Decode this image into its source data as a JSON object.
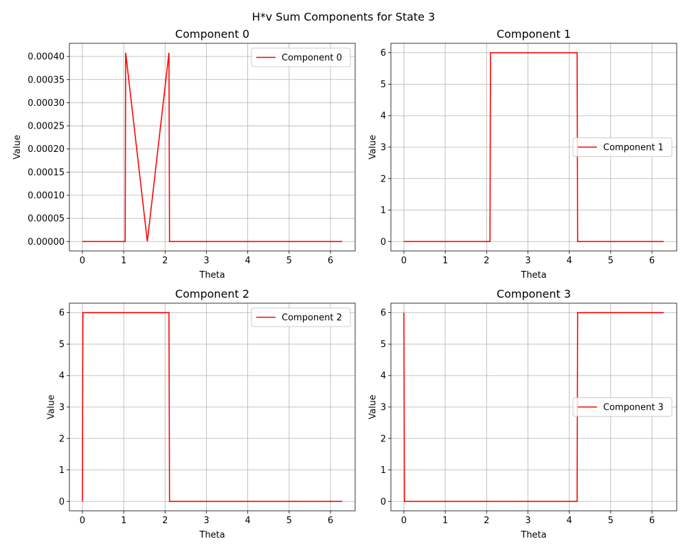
{
  "figure": {
    "suptitle": "H*v Sum Components for State 3",
    "line_color": "#ff0000",
    "grid_color": "#b0b0b0"
  },
  "chart_data": [
    {
      "type": "line",
      "title": "Component 0",
      "xlabel": "Theta",
      "ylabel": "Value",
      "xlim": [
        -0.3142,
        6.5973
      ],
      "ylim": [
        -2.04e-05,
        0.0004284
      ],
      "xticks": [
        0,
        1,
        2,
        3,
        4,
        5,
        6
      ],
      "xtick_labels": [
        "0",
        "1",
        "2",
        "3",
        "4",
        "5",
        "6"
      ],
      "yticks": [
        0,
        5e-05,
        0.0001,
        0.00015,
        0.0002,
        0.00025,
        0.0003,
        0.00035,
        0.0004
      ],
      "ytick_labels": [
        "0.00000",
        "0.00005",
        "0.00010",
        "0.00015",
        "0.00020",
        "0.00025",
        "0.00030",
        "0.00035",
        "0.00040"
      ],
      "grid": true,
      "legend_position": "upper right",
      "series": [
        {
          "name": "Component 0",
          "color": "#ff0000",
          "x": [
            0,
            1.035,
            1.047,
            1.5708,
            2.094,
            2.107,
            6.2832
          ],
          "y": [
            0,
            0,
            0.000408,
            0,
            0.000408,
            0,
            0
          ]
        }
      ]
    },
    {
      "type": "line",
      "title": "Component 1",
      "xlabel": "Theta",
      "ylabel": "Value",
      "xlim": [
        -0.3142,
        6.5973
      ],
      "ylim": [
        -0.3,
        6.3
      ],
      "xticks": [
        0,
        1,
        2,
        3,
        4,
        5,
        6
      ],
      "xtick_labels": [
        "0",
        "1",
        "2",
        "3",
        "4",
        "5",
        "6"
      ],
      "yticks": [
        0,
        1,
        2,
        3,
        4,
        5,
        6
      ],
      "ytick_labels": [
        "0",
        "1",
        "2",
        "3",
        "4",
        "5",
        "6"
      ],
      "grid": true,
      "legend_position": "center right",
      "series": [
        {
          "name": "Component 1",
          "color": "#ff0000",
          "x": [
            0,
            2.082,
            2.094,
            4.189,
            4.201,
            6.2832
          ],
          "y": [
            0,
            0,
            6,
            6,
            0,
            0
          ]
        }
      ]
    },
    {
      "type": "line",
      "title": "Component 2",
      "xlabel": "Theta",
      "ylabel": "Value",
      "xlim": [
        -0.3142,
        6.5973
      ],
      "ylim": [
        -0.3,
        6.3
      ],
      "xticks": [
        0,
        1,
        2,
        3,
        4,
        5,
        6
      ],
      "xtick_labels": [
        "0",
        "1",
        "2",
        "3",
        "4",
        "5",
        "6"
      ],
      "yticks": [
        0,
        1,
        2,
        3,
        4,
        5,
        6
      ],
      "ytick_labels": [
        "0",
        "1",
        "2",
        "3",
        "4",
        "5",
        "6"
      ],
      "grid": true,
      "legend_position": "upper right",
      "series": [
        {
          "name": "Component 2",
          "color": "#ff0000",
          "x": [
            0,
            0.0126,
            2.094,
            2.107,
            6.2832
          ],
          "y": [
            0,
            6,
            6,
            0,
            0
          ]
        }
      ]
    },
    {
      "type": "line",
      "title": "Component 3",
      "xlabel": "Theta",
      "ylabel": "Value",
      "xlim": [
        -0.3142,
        6.5973
      ],
      "ylim": [
        -0.3,
        6.3
      ],
      "xticks": [
        0,
        1,
        2,
        3,
        4,
        5,
        6
      ],
      "xtick_labels": [
        "0",
        "1",
        "2",
        "3",
        "4",
        "5",
        "6"
      ],
      "yticks": [
        0,
        1,
        2,
        3,
        4,
        5,
        6
      ],
      "ytick_labels": [
        "0",
        "1",
        "2",
        "3",
        "4",
        "5",
        "6"
      ],
      "grid": true,
      "legend_position": "center right",
      "series": [
        {
          "name": "Component 3",
          "color": "#ff0000",
          "x": [
            0,
            0.0126,
            4.189,
            4.201,
            6.2832
          ],
          "y": [
            6,
            0,
            0,
            6,
            6
          ]
        }
      ]
    }
  ]
}
